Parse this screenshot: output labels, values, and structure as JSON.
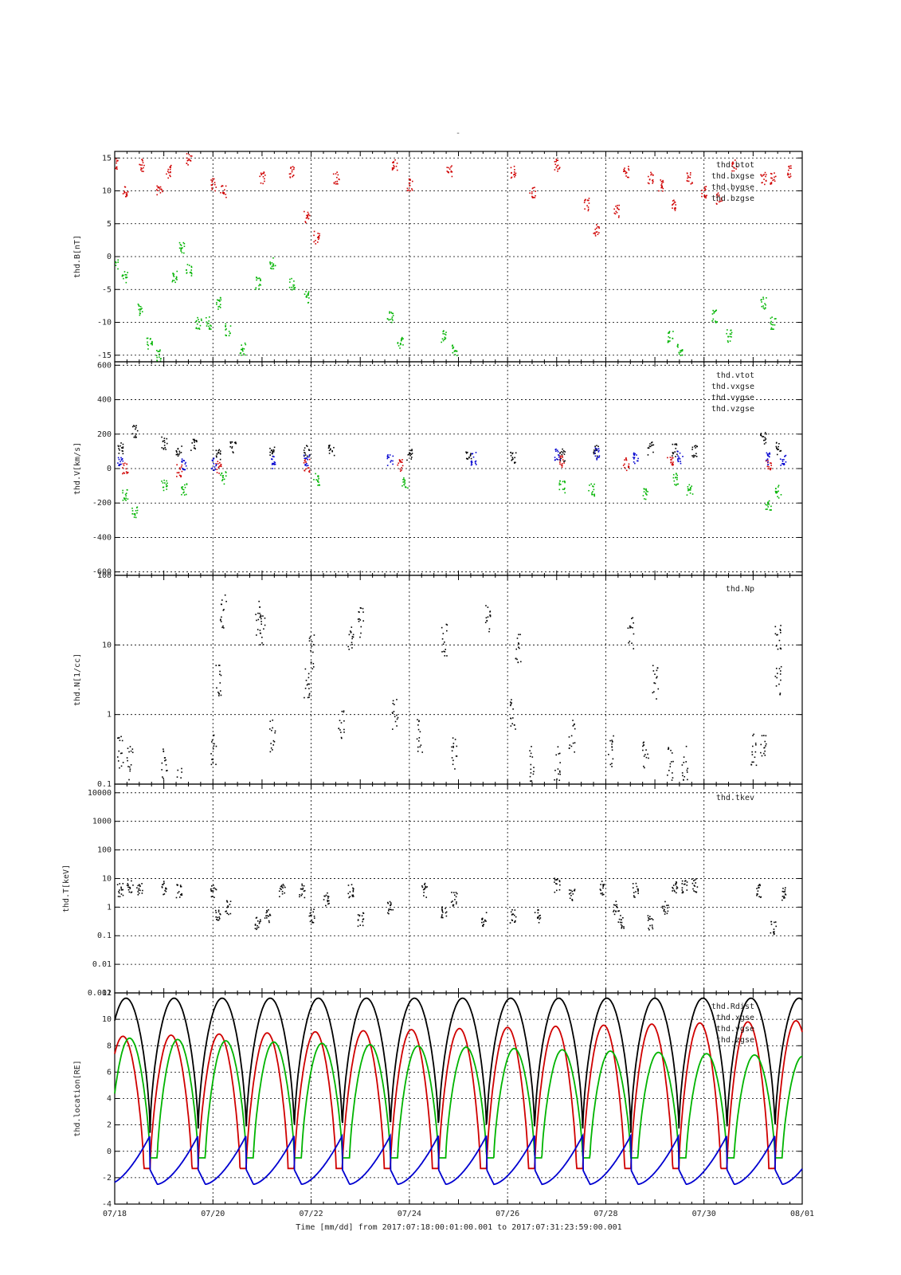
{
  "header": {
    "dash": "-"
  },
  "footer": {
    "time_label": "Time [mm/dd]  from 2017:07:18:00:01:00.001  to  2017:07:31:23:59:00.001"
  },
  "chart_data": [
    {
      "id": "b",
      "type": "scatter",
      "ylabel": "thd.B[nT]",
      "yscale": "linear",
      "ylim": [
        -16,
        16
      ],
      "yticks": [
        -15,
        -10,
        -5,
        0,
        5,
        10,
        15
      ],
      "ytick_labels": [
        "-15",
        "-10",
        "-5",
        "0",
        "5",
        "10",
        "15"
      ],
      "legend": "top-right",
      "series": [
        {
          "name": "thd.btot",
          "color": "#d00000",
          "markers": [
            [
              0.0,
              14
            ],
            [
              0.2,
              10
            ],
            [
              0.55,
              14
            ],
            [
              0.9,
              10
            ],
            [
              1.1,
              13
            ],
            [
              1.5,
              15
            ],
            [
              2.0,
              11
            ],
            [
              2.2,
              10
            ],
            [
              3.0,
              12
            ],
            [
              3.6,
              13
            ],
            [
              3.9,
              6
            ],
            [
              4.1,
              3
            ],
            [
              4.5,
              12
            ],
            [
              5.7,
              14
            ],
            [
              6.0,
              11
            ],
            [
              6.8,
              13
            ],
            [
              8.1,
              13
            ],
            [
              8.5,
              10
            ],
            [
              9.0,
              14
            ],
            [
              9.6,
              8
            ],
            [
              9.8,
              4
            ],
            [
              10.2,
              7
            ],
            [
              10.4,
              13
            ],
            [
              10.9,
              12
            ],
            [
              11.1,
              11
            ],
            [
              11.4,
              8
            ],
            [
              11.7,
              12
            ],
            [
              12.0,
              10
            ],
            [
              12.3,
              9
            ],
            [
              12.6,
              14
            ],
            [
              13.2,
              12
            ],
            [
              13.4,
              12
            ],
            [
              13.7,
              13
            ]
          ]
        },
        {
          "name": "thd.bxgse",
          "color": "#00b400",
          "markers": [
            [
              0.0,
              -1
            ],
            [
              0.2,
              -3
            ],
            [
              0.5,
              -8
            ],
            [
              0.7,
              -13
            ],
            [
              0.9,
              -15
            ],
            [
              1.2,
              -3
            ],
            [
              1.35,
              1.5
            ],
            [
              1.5,
              -2
            ],
            [
              1.7,
              -10
            ],
            [
              1.9,
              -10
            ],
            [
              2.1,
              -7
            ],
            [
              2.3,
              -11
            ],
            [
              2.6,
              -14
            ],
            [
              2.9,
              -4
            ],
            [
              3.2,
              -1
            ],
            [
              3.6,
              -4
            ],
            [
              3.9,
              -6
            ],
            [
              5.6,
              -9
            ],
            [
              5.8,
              -13
            ],
            [
              6.7,
              -12
            ],
            [
              6.9,
              -14
            ],
            [
              11.3,
              -12
            ],
            [
              11.5,
              -14
            ],
            [
              12.2,
              -9
            ],
            [
              12.5,
              -12
            ],
            [
              13.2,
              -7
            ],
            [
              13.4,
              -10
            ]
          ]
        },
        {
          "name": "thd.bygse",
          "color": "#0000d0",
          "markers": []
        },
        {
          "name": "thd.bzgse",
          "color": "#000000",
          "markers": []
        }
      ]
    },
    {
      "id": "v",
      "type": "scatter",
      "ylabel": "thd.V[km/s]",
      "yscale": "linear",
      "ylim": [
        -620,
        620
      ],
      "yticks": [
        -600,
        -400,
        -200,
        0,
        200,
        400,
        600
      ],
      "ytick_labels": [
        "-600",
        "-400",
        "-200",
        "0",
        "200",
        "400",
        "600"
      ],
      "legend": "top-right",
      "series": [
        {
          "name": "thd.vtot",
          "color": "#000000",
          "markers": [
            [
              0.1,
              120
            ],
            [
              0.4,
              220
            ],
            [
              1.0,
              150
            ],
            [
              1.3,
              100
            ],
            [
              1.6,
              140
            ],
            [
              2.1,
              90
            ],
            [
              2.4,
              130
            ],
            [
              3.2,
              110
            ],
            [
              3.9,
              100
            ],
            [
              4.4,
              110
            ],
            [
              6.0,
              80
            ],
            [
              7.2,
              90
            ],
            [
              8.1,
              70
            ],
            [
              9.1,
              80
            ],
            [
              9.8,
              100
            ],
            [
              10.9,
              120
            ],
            [
              11.4,
              110
            ],
            [
              11.8,
              100
            ],
            [
              13.2,
              180
            ],
            [
              13.5,
              120
            ]
          ]
        },
        {
          "name": "thd.vxgse",
          "color": "#d00000",
          "markers": [
            [
              0.2,
              10
            ],
            [
              1.3,
              -10
            ],
            [
              2.1,
              10
            ],
            [
              3.9,
              20
            ],
            [
              5.8,
              20
            ],
            [
              9.1,
              40
            ],
            [
              10.4,
              30
            ],
            [
              11.3,
              40
            ],
            [
              13.3,
              30
            ]
          ]
        },
        {
          "name": "thd.vygse",
          "color": "#00b400",
          "markers": [
            [
              0.2,
              -150
            ],
            [
              0.4,
              -250
            ],
            [
              1.0,
              -100
            ],
            [
              1.4,
              -120
            ],
            [
              2.2,
              -50
            ],
            [
              4.1,
              -60
            ],
            [
              5.9,
              -80
            ],
            [
              9.1,
              -100
            ],
            [
              9.7,
              -120
            ],
            [
              10.8,
              -150
            ],
            [
              11.4,
              -60
            ],
            [
              11.7,
              -120
            ],
            [
              13.3,
              -200
            ],
            [
              13.5,
              -130
            ]
          ]
        },
        {
          "name": "thd.vzgse",
          "color": "#0000d0",
          "markers": [
            [
              0.1,
              30
            ],
            [
              1.4,
              30
            ],
            [
              2.0,
              30
            ],
            [
              3.2,
              40
            ],
            [
              3.9,
              50
            ],
            [
              5.6,
              50
            ],
            [
              7.3,
              60
            ],
            [
              9.0,
              80
            ],
            [
              9.8,
              90
            ],
            [
              10.6,
              60
            ],
            [
              11.5,
              70
            ],
            [
              13.3,
              60
            ],
            [
              13.6,
              50
            ]
          ]
        }
      ]
    },
    {
      "id": "n",
      "type": "scatter",
      "ylabel": "thd.N[1/cc]",
      "yscale": "log",
      "ylim": [
        0.1,
        100
      ],
      "yticks": [
        0.1,
        1,
        10,
        100
      ],
      "ytick_labels": [
        "0.1",
        "1",
        "10",
        "100"
      ],
      "legend": "top-right",
      "series": [
        {
          "name": "thd.Np",
          "color": "#000000",
          "markers": [
            [
              0.1,
              0.3
            ],
            [
              0.3,
              0.2
            ],
            [
              1.0,
              0.2
            ],
            [
              1.3,
              0.1
            ],
            [
              2.0,
              0.3
            ],
            [
              2.1,
              3
            ],
            [
              2.2,
              30
            ],
            [
              2.9,
              25
            ],
            [
              3.0,
              15
            ],
            [
              3.2,
              0.5
            ],
            [
              3.9,
              3
            ],
            [
              4.0,
              8
            ],
            [
              4.6,
              0.8
            ],
            [
              4.8,
              12
            ],
            [
              5.0,
              20
            ],
            [
              5.7,
              1
            ],
            [
              6.2,
              0.5
            ],
            [
              6.7,
              12
            ],
            [
              6.9,
              0.3
            ],
            [
              7.6,
              25
            ],
            [
              8.1,
              1
            ],
            [
              8.2,
              9
            ],
            [
              8.5,
              0.2
            ],
            [
              9.0,
              0.2
            ],
            [
              9.3,
              0.5
            ],
            [
              10.1,
              0.3
            ],
            [
              10.5,
              15
            ],
            [
              10.8,
              0.3
            ],
            [
              11.0,
              3
            ],
            [
              11.3,
              0.2
            ],
            [
              11.6,
              0.2
            ],
            [
              13.0,
              0.3
            ],
            [
              13.2,
              0.4
            ],
            [
              13.5,
              3
            ],
            [
              13.5,
              15
            ]
          ]
        }
      ]
    },
    {
      "id": "t",
      "type": "scatter",
      "ylabel": "thd.T[keV]",
      "yscale": "log",
      "ylim": [
        0.001,
        20000
      ],
      "yticks": [
        0.001,
        0.01,
        0.1,
        1,
        10,
        100,
        1000,
        10000
      ],
      "ytick_labels": [
        "0.001",
        "0.01",
        "0.1",
        "1",
        "10",
        "100",
        "1000",
        "10000"
      ],
      "legend": "top-right",
      "series": [
        {
          "name": "thd.tkev",
          "color": "#000000",
          "markers": [
            [
              0.1,
              4
            ],
            [
              0.3,
              6
            ],
            [
              0.5,
              5
            ],
            [
              1.0,
              5
            ],
            [
              1.3,
              4
            ],
            [
              2.0,
              4
            ],
            [
              2.1,
              0.5
            ],
            [
              2.3,
              1
            ],
            [
              2.9,
              0.3
            ],
            [
              3.1,
              0.5
            ],
            [
              3.4,
              4
            ],
            [
              3.8,
              4
            ],
            [
              4.0,
              0.5
            ],
            [
              4.3,
              2
            ],
            [
              4.8,
              4
            ],
            [
              5.0,
              0.4
            ],
            [
              5.6,
              1
            ],
            [
              6.3,
              4
            ],
            [
              6.7,
              0.6
            ],
            [
              6.9,
              2
            ],
            [
              7.5,
              0.4
            ],
            [
              8.1,
              0.5
            ],
            [
              8.6,
              0.5
            ],
            [
              9.0,
              6
            ],
            [
              9.3,
              3
            ],
            [
              9.9,
              5
            ],
            [
              10.2,
              1
            ],
            [
              10.3,
              0.3
            ],
            [
              10.6,
              4
            ],
            [
              10.9,
              0.3
            ],
            [
              11.2,
              1
            ],
            [
              11.4,
              5
            ],
            [
              11.6,
              5
            ],
            [
              11.8,
              6
            ],
            [
              13.1,
              4
            ],
            [
              13.4,
              0.2
            ],
            [
              13.6,
              3
            ]
          ]
        }
      ]
    },
    {
      "id": "loc",
      "type": "line",
      "ylabel": "thd.location[RE]",
      "yscale": "linear",
      "ylim": [
        -4,
        12
      ],
      "yticks": [
        -4,
        -2,
        0,
        2,
        4,
        6,
        8,
        10,
        12
      ],
      "ytick_labels": [
        "-4",
        "-2",
        "0",
        "2",
        "4",
        "6",
        "8",
        "10",
        "12"
      ],
      "legend": "top-right",
      "orbit": {
        "first_periapsis_day": 0.72,
        "period_days": 0.979,
        "rdist_peak": 11.6,
        "xgse_peak_start": 8.7,
        "xgse_peak_end": 9.9,
        "ygse_peak_start": 8.6,
        "ygse_peak_end": 7.2,
        "zgse_min": -2.5,
        "zgse_max": 1.2
      },
      "series": [
        {
          "name": "thd.Rdist",
          "color": "#000000"
        },
        {
          "name": "thd.xgse",
          "color": "#d00000"
        },
        {
          "name": "thd.ygse",
          "color": "#00b400"
        },
        {
          "name": "thd.zgse",
          "color": "#0000d0"
        }
      ]
    }
  ],
  "x_axis": {
    "range_days": [
      0,
      14
    ],
    "ticks": [
      {
        "day": 0,
        "label": "07/18"
      },
      {
        "day": 2,
        "label": "07/20"
      },
      {
        "day": 4,
        "label": "07/22"
      },
      {
        "day": 6,
        "label": "07/24"
      },
      {
        "day": 8,
        "label": "07/26"
      },
      {
        "day": 10,
        "label": "07/28"
      },
      {
        "day": 12,
        "label": "07/30"
      },
      {
        "day": 14,
        "label": "08/01"
      }
    ]
  }
}
